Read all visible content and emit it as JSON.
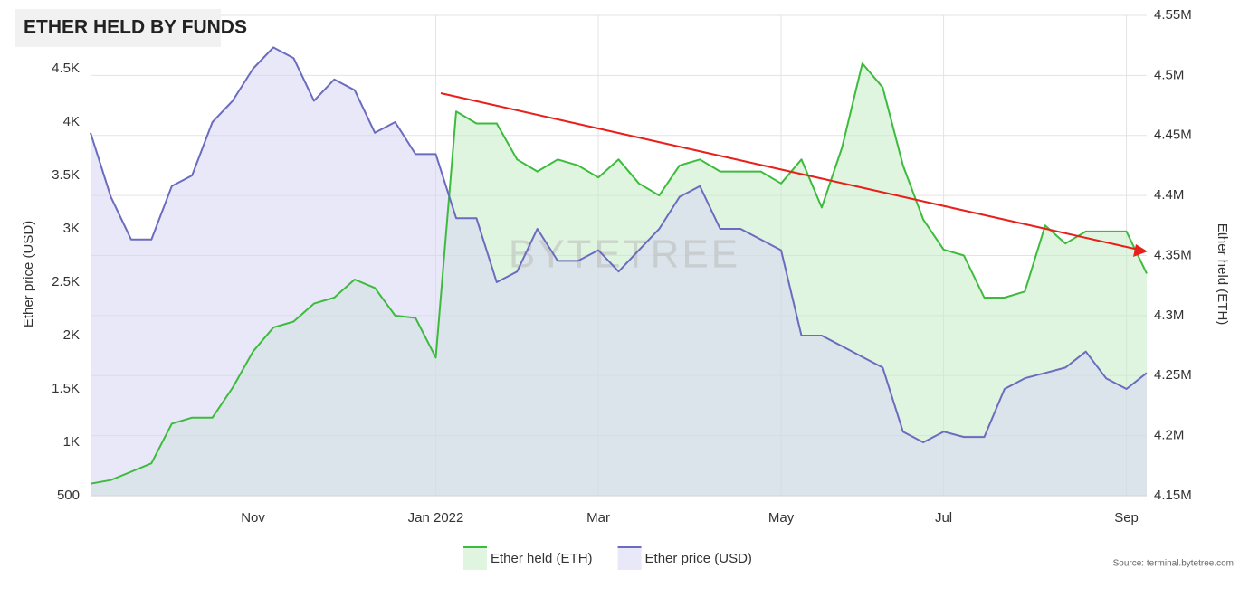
{
  "chart_data": {
    "type": "line",
    "title": "ETHER HELD BY FUNDS",
    "watermark": "BYTETREE",
    "source": "Source: terminal.bytetree.com",
    "ylabel": "Ether price (USD)",
    "y2label": "Ether held (ETH)",
    "categories": [
      null,
      null,
      null,
      null,
      null,
      null,
      null,
      null,
      "Nov",
      null,
      null,
      null,
      null,
      null,
      null,
      null,
      null,
      "Jan 2022",
      null,
      null,
      null,
      null,
      null,
      null,
      null,
      "Mar",
      null,
      null,
      null,
      null,
      null,
      null,
      null,
      null,
      "May",
      null,
      null,
      null,
      null,
      null,
      null,
      null,
      "Jul",
      null,
      null,
      null,
      null,
      null,
      null,
      null,
      null,
      "Sep",
      null
    ],
    "series": [
      {
        "name": "Ether held (ETH)",
        "color": "#3dbb3d",
        "fill": "#c4ecc4",
        "axis": "y2",
        "values": [
          4160000,
          4163000,
          4170000,
          4177000,
          4210000,
          4215000,
          4215000,
          4240000,
          4270000,
          4290000,
          4295000,
          4310000,
          4315000,
          4330000,
          4323000,
          4300000,
          4298000,
          4265000,
          4470000,
          4460000,
          4460000,
          4430000,
          4420000,
          4430000,
          4425000,
          4415000,
          4430000,
          4410000,
          4400000,
          4425000,
          4430000,
          4420000,
          4420000,
          4420000,
          4410000,
          4430000,
          4390000,
          4440000,
          4510000,
          4490000,
          4425000,
          4380000,
          4355000,
          4350000,
          4315000,
          4315000,
          4320000,
          4375000,
          4360000,
          4370000,
          4370000,
          4370000,
          4335000
        ]
      },
      {
        "name": "Ether price (USD)",
        "color": "#6b6bbf",
        "fill": "#d6d6f2",
        "axis": "y",
        "values": [
          3900,
          3300,
          2900,
          2900,
          3400,
          3500,
          4000,
          4200,
          4500,
          4700,
          4600,
          4200,
          4400,
          4300,
          3900,
          4000,
          3700,
          3700,
          3100,
          3100,
          2500,
          2600,
          3000,
          2700,
          2700,
          2800,
          2600,
          2800,
          3000,
          3300,
          3400,
          3000,
          3000,
          2900,
          2800,
          2000,
          2000,
          1900,
          1800,
          1700,
          1100,
          1000,
          1100,
          1050,
          1050,
          1500,
          1600,
          1650,
          1700,
          1850,
          1600,
          1500,
          1650
        ]
      }
    ],
    "ylim": [
      500,
      5000
    ],
    "yticks": [
      500,
      {
        "value": 1000,
        "label": "1K"
      },
      {
        "value": 1500,
        "label": "1.5K"
      },
      {
        "value": 2000,
        "label": "2K"
      },
      {
        "value": 2500,
        "label": "2.5K"
      },
      {
        "value": 3000,
        "label": "3K"
      },
      {
        "value": 3500,
        "label": "3.5K"
      },
      {
        "value": 4000,
        "label": "4K"
      },
      {
        "value": 4500,
        "label": "4.5K"
      }
    ],
    "y2lim": [
      4150000,
      4550000
    ],
    "y2ticks": [
      {
        "value": 4150000,
        "label": "4.15M"
      },
      {
        "value": 4200000,
        "label": "4.2M"
      },
      {
        "value": 4250000,
        "label": "4.25M"
      },
      {
        "value": 4300000,
        "label": "4.3M"
      },
      {
        "value": 4350000,
        "label": "4.35M"
      },
      {
        "value": 4400000,
        "label": "4.4M"
      },
      {
        "value": 4450000,
        "label": "4.45M"
      },
      {
        "value": 4500000,
        "label": "4.5M"
      },
      {
        "value": 4550000,
        "label": "4.55M"
      }
    ],
    "grid": true
  }
}
